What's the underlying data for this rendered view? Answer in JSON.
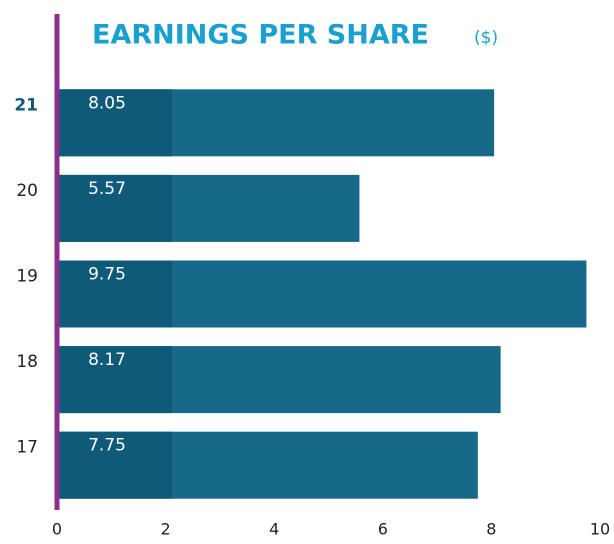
{
  "chart_data": {
    "type": "bar",
    "orientation": "horizontal",
    "title": "EARNINGS PER SHARE",
    "unit": "($)",
    "categories": [
      "21",
      "20",
      "19",
      "18",
      "17"
    ],
    "values": [
      8.05,
      5.57,
      9.75,
      8.17,
      7.75
    ],
    "color": "#17698a",
    "label_box_color": "#0e5a78",
    "axis_color": "#8b2f8a",
    "title_color": "#1aa0d0",
    "highlight_category": "21",
    "highlight_color": "#0e5a78",
    "xlim": [
      0,
      10
    ],
    "xticks": [
      0,
      2,
      4,
      6,
      8,
      10
    ],
    "grid": false
  }
}
